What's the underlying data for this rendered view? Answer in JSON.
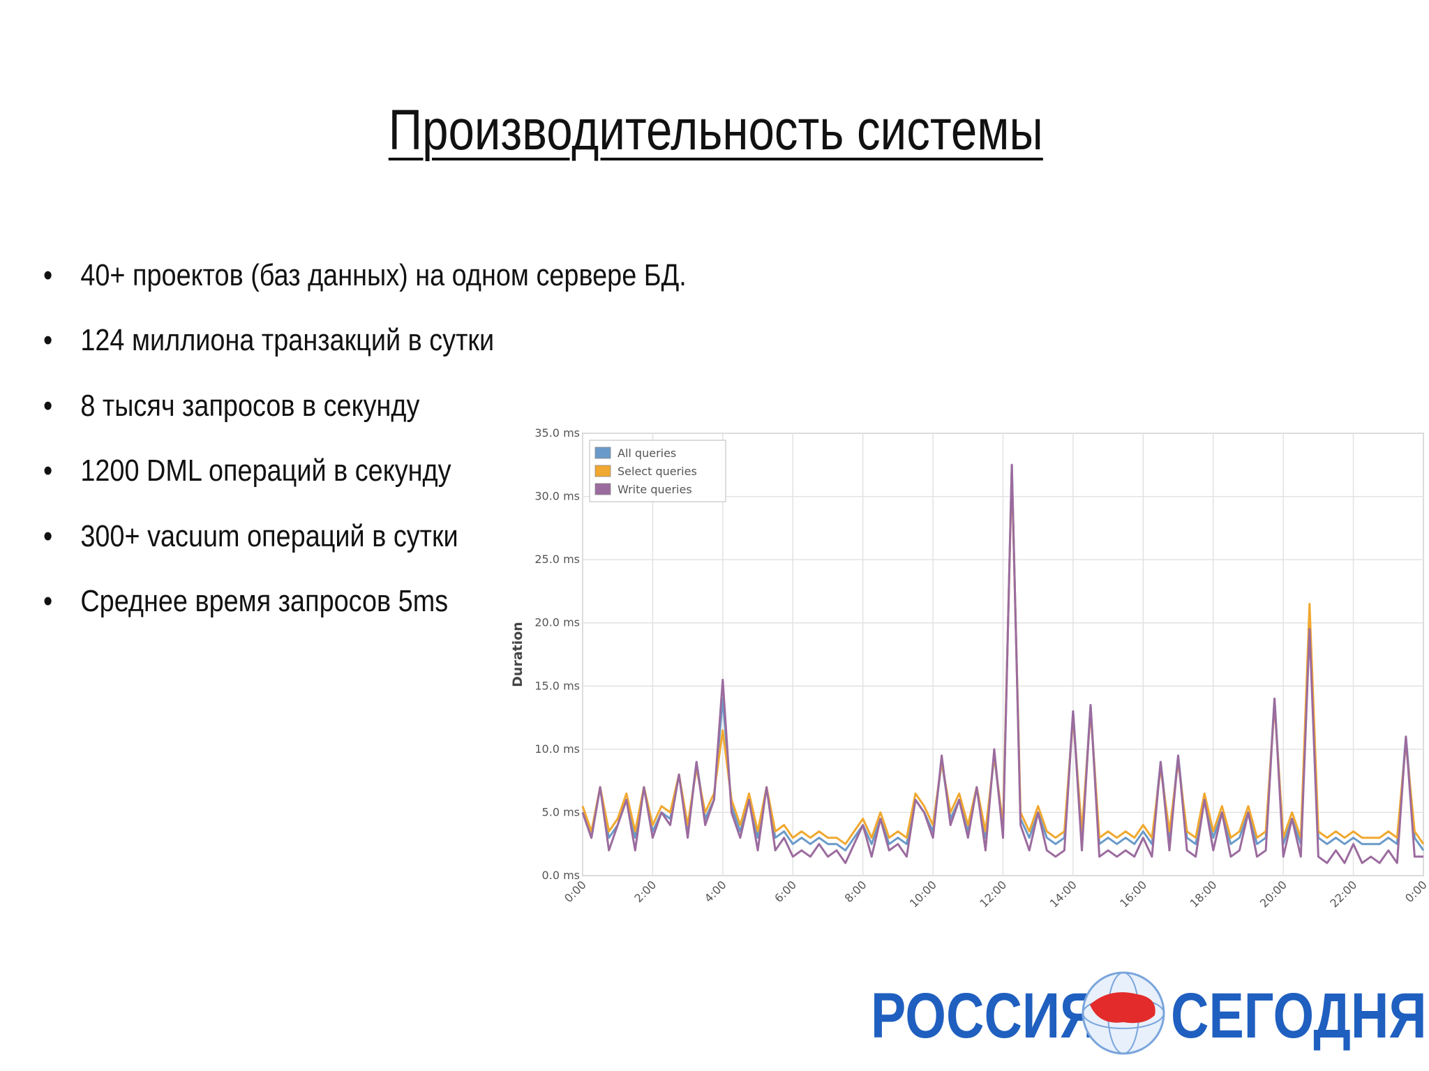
{
  "title": "Производительность системы",
  "bullets": [
    "40+ проектов (баз данных) на одном сервере БД.",
    "124 миллиона транзакций в сутки",
    "8 тысяч запросов в секунду",
    "1200 DML операций в секунду",
    "300+ vacuum операций в сутки",
    "Среднее время запросов 5ms"
  ],
  "chart_data": {
    "type": "line",
    "ylabel": "Duration",
    "grid": true,
    "legend": "upper left",
    "xlim": [
      0,
      24
    ],
    "ylim": [
      0,
      35
    ],
    "xticks": [
      {
        "value": 0,
        "label": "0:00"
      },
      {
        "value": 2,
        "label": "2:00"
      },
      {
        "value": 4,
        "label": "4:00"
      },
      {
        "value": 6,
        "label": "6:00"
      },
      {
        "value": 8,
        "label": "8:00"
      },
      {
        "value": 10,
        "label": "10:00"
      },
      {
        "value": 12,
        "label": "12:00"
      },
      {
        "value": 14,
        "label": "14:00"
      },
      {
        "value": 16,
        "label": "16:00"
      },
      {
        "value": 18,
        "label": "18:00"
      },
      {
        "value": 20,
        "label": "20:00"
      },
      {
        "value": 22,
        "label": "22:00"
      },
      {
        "value": 24,
        "label": "0:00"
      }
    ],
    "yticks": [
      {
        "value": 0,
        "label": "0.0 ms"
      },
      {
        "value": 5,
        "label": "5.0 ms"
      },
      {
        "value": 10,
        "label": "10.0 ms"
      },
      {
        "value": 15,
        "label": "15.0 ms"
      },
      {
        "value": 20,
        "label": "20.0 ms"
      },
      {
        "value": 25,
        "label": "25.0 ms"
      },
      {
        "value": 30,
        "label": "30.0 ms"
      },
      {
        "value": 35,
        "label": "35.0 ms"
      }
    ],
    "x": [
      0,
      0.25,
      0.5,
      0.75,
      1,
      1.25,
      1.5,
      1.75,
      2,
      2.25,
      2.5,
      2.75,
      3,
      3.25,
      3.5,
      3.75,
      4,
      4.25,
      4.5,
      4.75,
      5,
      5.25,
      5.5,
      5.75,
      6,
      6.25,
      6.5,
      6.75,
      7,
      7.25,
      7.5,
      7.75,
      8,
      8.25,
      8.5,
      8.75,
      9,
      9.25,
      9.5,
      9.75,
      10,
      10.25,
      10.5,
      10.75,
      11,
      11.25,
      11.5,
      11.75,
      12,
      12.25,
      12.5,
      12.75,
      13,
      13.25,
      13.5,
      13.75,
      14,
      14.25,
      14.5,
      14.75,
      15,
      15.25,
      15.5,
      15.75,
      16,
      16.25,
      16.5,
      16.75,
      17,
      17.25,
      17.5,
      17.75,
      18,
      18.25,
      18.5,
      18.75,
      19,
      19.25,
      19.5,
      19.75,
      20,
      20.25,
      20.5,
      20.75,
      21,
      21.25,
      21.5,
      21.75,
      22,
      22.25,
      22.5,
      22.75,
      23,
      23.25,
      23.5,
      23.75,
      24
    ],
    "series": [
      {
        "name": "All queries",
        "color": "#6a9ac9",
        "values": [
          5,
          3,
          7,
          3,
          4,
          6,
          3,
          7,
          3.5,
          5,
          4.5,
          8,
          3.5,
          9,
          4.5,
          6,
          14,
          5.5,
          3.5,
          6,
          3,
          7,
          3,
          3.5,
          2.5,
          3,
          2.5,
          3,
          2.5,
          2.5,
          2,
          3,
          4,
          2.5,
          4.5,
          2.5,
          3,
          2.5,
          6,
          5,
          3.5,
          9,
          4.5,
          6,
          3.5,
          7,
          3,
          9.5,
          3.5,
          32.5,
          4.5,
          3,
          5,
          3,
          2.5,
          3,
          13,
          3,
          13.5,
          2.5,
          3,
          2.5,
          3,
          2.5,
          3.5,
          2.5,
          9,
          3,
          9.5,
          3,
          2.5,
          6,
          3,
          5,
          2.5,
          3,
          5,
          2.5,
          3,
          14,
          2.5,
          4.5,
          2.5,
          20,
          3,
          2.5,
          3,
          2.5,
          3,
          2.5,
          2.5,
          2.5,
          3,
          2.5,
          11,
          3,
          2
        ]
      },
      {
        "name": "Select queries",
        "color": "#f0a830",
        "values": [
          5.5,
          3.5,
          7,
          3.5,
          4.5,
          6.5,
          3.5,
          7,
          4,
          5.5,
          5,
          8,
          4,
          8.5,
          5,
          6.5,
          11.5,
          6,
          4,
          6.5,
          3.5,
          7,
          3.5,
          4,
          3,
          3.5,
          3,
          3.5,
          3,
          3,
          2.5,
          3.5,
          4.5,
          3,
          5,
          3,
          3.5,
          3,
          6.5,
          5.5,
          4,
          9,
          5,
          6.5,
          4,
          7,
          3.5,
          9.5,
          4,
          32,
          5,
          3.5,
          5.5,
          3.5,
          3,
          3.5,
          12.5,
          3.5,
          13,
          3,
          3.5,
          3,
          3.5,
          3,
          4,
          3,
          8.5,
          3.5,
          9,
          3.5,
          3,
          6.5,
          3.5,
          5.5,
          3,
          3.5,
          5.5,
          3,
          3.5,
          13.5,
          3,
          5,
          3,
          21.5,
          3.5,
          3,
          3.5,
          3,
          3.5,
          3,
          3,
          3,
          3.5,
          3,
          10.5,
          3.5,
          2.5
        ]
      },
      {
        "name": "Write queries",
        "color": "#9b6b9e",
        "values": [
          5,
          3,
          7,
          2,
          4,
          6,
          2,
          7,
          3,
          5,
          4,
          8,
          3,
          9,
          4,
          6,
          15.5,
          5,
          3,
          6,
          2,
          7,
          2,
          3,
          1.5,
          2,
          1.5,
          2.5,
          1.5,
          2,
          1,
          2.5,
          4,
          1.5,
          4.5,
          2,
          2.5,
          1.5,
          6,
          5,
          3,
          9.5,
          4,
          6,
          3,
          7,
          2,
          10,
          3,
          32.5,
          4,
          2,
          5,
          2,
          1.5,
          2,
          13,
          2,
          13.5,
          1.5,
          2,
          1.5,
          2,
          1.5,
          3,
          1.5,
          9,
          2,
          9.5,
          2,
          1.5,
          6,
          2,
          5,
          1.5,
          2,
          5,
          1.5,
          2,
          14,
          1.5,
          4.5,
          1.5,
          19.5,
          1.5,
          1,
          2,
          1,
          2.5,
          1,
          1.5,
          1,
          2,
          1,
          11,
          1.5,
          1.5
        ]
      }
    ]
  },
  "logo": {
    "left": "РОССИЯ",
    "right": "СЕГОДНЯ"
  }
}
